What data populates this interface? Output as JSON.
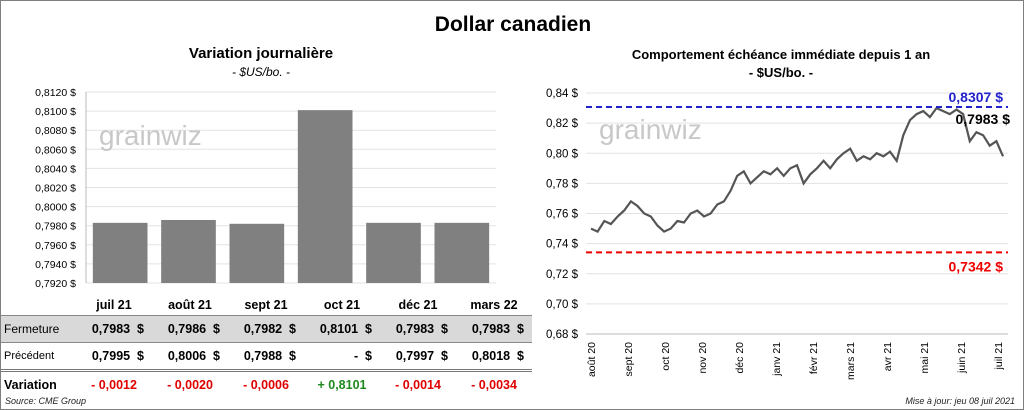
{
  "title": "Dollar canadien",
  "chart_data": [
    {
      "type": "bar",
      "title": "Variation  journalière",
      "subtitle": "- $US/bo. -",
      "categories": [
        "juil 21",
        "août 21",
        "sept 21",
        "oct 21",
        "déc 21",
        "mars 22"
      ],
      "values": [
        0.7983,
        0.7986,
        0.7982,
        0.8101,
        0.7983,
        0.7983
      ],
      "ylim": [
        0.792,
        0.812
      ],
      "yticks": [
        "0,7920 $",
        "0,7940 $",
        "0,7960 $",
        "0,7980 $",
        "0,8000 $",
        "0,8020 $",
        "0,8040 $",
        "0,8060 $",
        "0,8080 $",
        "0,8100 $",
        "0,8120 $"
      ],
      "bar_color": "#808080"
    },
    {
      "type": "line",
      "title": "Comportement échéance immédiate depuis 1 an",
      "subtitle": "- $US/bo. -",
      "ylim": [
        0.68,
        0.84
      ],
      "yticks": [
        "0,68 $",
        "0,70 $",
        "0,72 $",
        "0,74 $",
        "0,76 $",
        "0,78 $",
        "0,80 $",
        "0,82 $",
        "0,84 $"
      ],
      "xticks": [
        "août 20",
        "sept 20",
        "oct 20",
        "nov 20",
        "déc 20",
        "janv 21",
        "févr 21",
        "mars 21",
        "avr 21",
        "mai 21",
        "juin 21",
        "juil 21"
      ],
      "values": [
        0.75,
        0.748,
        0.755,
        0.753,
        0.758,
        0.762,
        0.768,
        0.765,
        0.76,
        0.758,
        0.752,
        0.748,
        0.75,
        0.755,
        0.754,
        0.76,
        0.762,
        0.758,
        0.76,
        0.766,
        0.768,
        0.775,
        0.785,
        0.788,
        0.78,
        0.784,
        0.788,
        0.786,
        0.79,
        0.785,
        0.79,
        0.792,
        0.78,
        0.786,
        0.79,
        0.795,
        0.79,
        0.796,
        0.8,
        0.803,
        0.795,
        0.798,
        0.796,
        0.8,
        0.798,
        0.801,
        0.795,
        0.812,
        0.822,
        0.826,
        0.828,
        0.824,
        0.83,
        0.828,
        0.826,
        0.829,
        0.826,
        0.808,
        0.814,
        0.812,
        0.805,
        0.808,
        0.798
      ],
      "max_line": {
        "value": 0.8307,
        "label": "0,8307  $",
        "color": "#2222cc"
      },
      "min_line": {
        "value": 0.7342,
        "label": "0,7342  $",
        "color": "#ee0000"
      },
      "last_label": "0,7983 $",
      "line_color": "#555555"
    }
  ],
  "watermark": "grainwiz",
  "table": {
    "rows": [
      {
        "label": "Fermeture",
        "values": [
          "0,7983",
          "0,7986",
          "0,7982",
          "0,8101",
          "0,7983",
          "0,7983"
        ],
        "unit": "$"
      },
      {
        "label": "Précédent",
        "values": [
          "0,7995",
          "0,8006",
          "0,7988",
          "-",
          "0,7997",
          "0,8018"
        ],
        "unit": "$"
      }
    ],
    "variation_label": "Variation",
    "variation": [
      "- 0,0012",
      "- 0,0020",
      "- 0,0006",
      "+ 0,8101",
      "- 0,0014",
      "- 0,0034"
    ]
  },
  "source": "Source: CME Group",
  "updated": "Mise à jour: jeu 08 juil 2021"
}
